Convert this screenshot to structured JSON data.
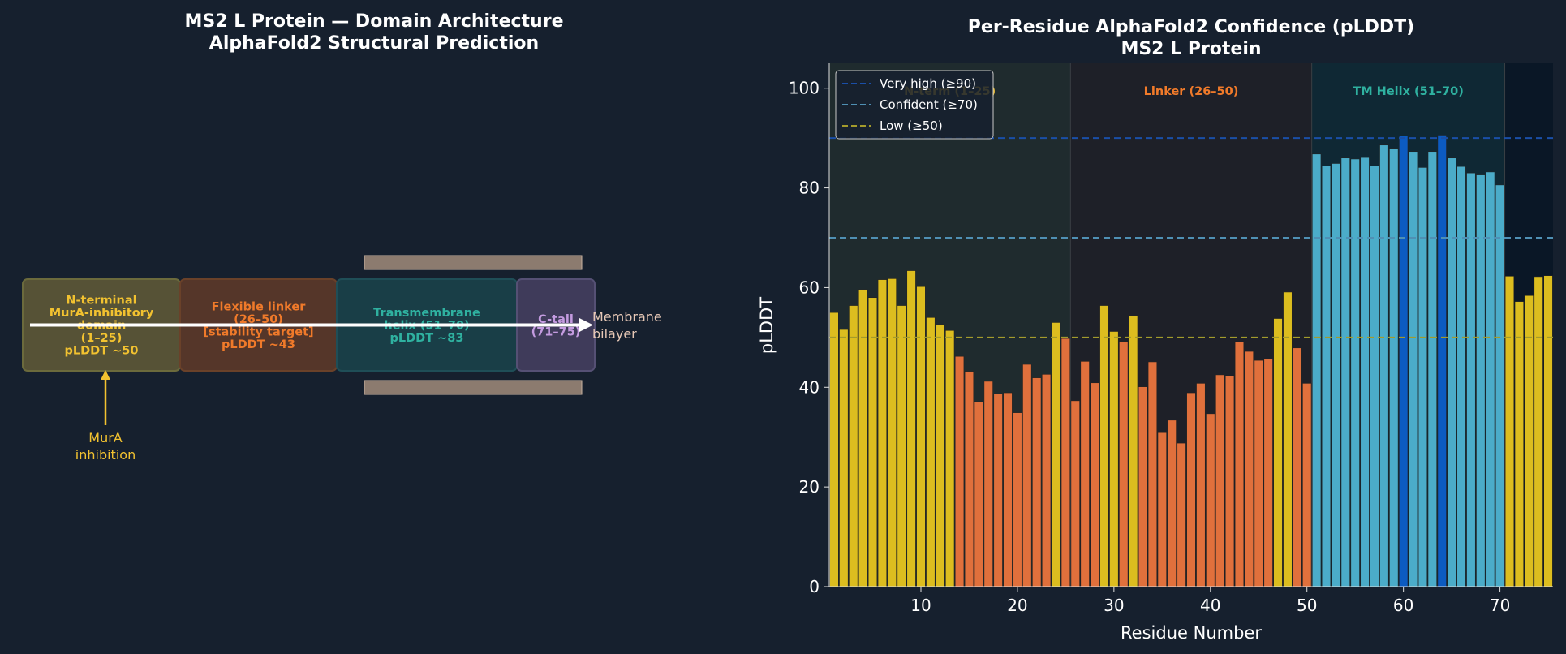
{
  "left_panel": {
    "title_line1": "MS2 L Protein — Domain Architecture",
    "title_line2": "AlphaFold2 Structural Prediction",
    "domains": [
      {
        "lines": [
          "N-terminal",
          "MurA-inhibitory",
          "domain",
          "(1–25)",
          "pLDDT ~50"
        ],
        "color": "#f2c230",
        "fill": "#565236",
        "border": "#6b6a3c"
      },
      {
        "lines": [
          "Flexible linker",
          "(26–50)",
          "[stability target]",
          "pLDDT ~43"
        ],
        "color": "#f07a2a",
        "fill": "#553629",
        "border": "#6a4129"
      },
      {
        "lines": [
          "Transmembrane",
          "helix (51–70)",
          "pLDDT ~83"
        ],
        "color": "#2fb1a0",
        "fill": "#193e47",
        "border": "#1f4e57"
      },
      {
        "lines": [
          "C-tail",
          "(71–75)"
        ],
        "color": "#c49be0",
        "fill": "#3f3b5a",
        "border": "#555074"
      }
    ],
    "membrane_label_line1": "Membrane",
    "membrane_label_line2": "bilayer",
    "mura_label_line1": "MurA",
    "mura_label_line2": "inhibition",
    "membrane_color": "#8c7b6f",
    "arrow_color": "#ffffff",
    "mura_color": "#f2c230"
  },
  "chart_data": {
    "type": "bar",
    "title": "Per-Residue AlphaFold2 Confidence (pLDDT)",
    "subtitle": "MS2 L Protein",
    "xlabel": "Residue Number",
    "ylabel": "pLDDT",
    "xlim": [
      0.5,
      75.5
    ],
    "ylim": [
      0,
      105
    ],
    "xticks": [
      10,
      20,
      30,
      40,
      50,
      60,
      70
    ],
    "yticks": [
      0,
      20,
      40,
      60,
      80,
      100
    ],
    "x": [
      1,
      2,
      3,
      4,
      5,
      6,
      7,
      8,
      9,
      10,
      11,
      12,
      13,
      14,
      15,
      16,
      17,
      18,
      19,
      20,
      21,
      22,
      23,
      24,
      25,
      26,
      27,
      28,
      29,
      30,
      31,
      32,
      33,
      34,
      35,
      36,
      37,
      38,
      39,
      40,
      41,
      42,
      43,
      44,
      45,
      46,
      47,
      48,
      49,
      50,
      51,
      52,
      53,
      54,
      55,
      56,
      57,
      58,
      59,
      60,
      61,
      62,
      63,
      64,
      65,
      66,
      67,
      68,
      69,
      70,
      71,
      72,
      73,
      74,
      75
    ],
    "values": [
      55,
      51.6,
      56.4,
      59.6,
      58,
      61.6,
      61.8,
      56.4,
      63.4,
      60.2,
      54,
      52.6,
      51.4,
      46.2,
      43.2,
      37.1,
      41.2,
      38.7,
      38.9,
      34.9,
      44.6,
      41.9,
      42.6,
      53,
      49.8,
      37.3,
      45.2,
      40.9,
      56.4,
      51.2,
      49.2,
      54.4,
      40.1,
      45.1,
      30.9,
      33.4,
      28.8,
      38.9,
      40.8,
      34.7,
      42.5,
      42.3,
      49.1,
      47.2,
      45.4,
      45.7,
      53.8,
      59.1,
      47.9,
      40.8,
      86.8,
      84.4,
      84.9,
      86,
      85.8,
      86.1,
      84.4,
      88.6,
      87.8,
      90.4,
      87.3,
      84.1,
      87.3,
      90.6,
      86,
      84.3,
      83,
      82.6,
      83.2,
      80.6,
      62.3,
      57.2,
      58.4,
      62.2,
      62.4
    ],
    "bar_colors": [
      "#dcbd1f",
      "#dcbd1f",
      "#dcbd1f",
      "#dcbd1f",
      "#dcbd1f",
      "#dcbd1f",
      "#dcbd1f",
      "#dcbd1f",
      "#dcbd1f",
      "#dcbd1f",
      "#dcbd1f",
      "#dcbd1f",
      "#dcbd1f",
      "#e0703c",
      "#e0703c",
      "#e0703c",
      "#e0703c",
      "#e0703c",
      "#e0703c",
      "#e0703c",
      "#e0703c",
      "#e0703c",
      "#e0703c",
      "#dcbd1f",
      "#e0703c",
      "#e0703c",
      "#e0703c",
      "#e0703c",
      "#dcbd1f",
      "#dcbd1f",
      "#e0703c",
      "#dcbd1f",
      "#e0703c",
      "#e0703c",
      "#e0703c",
      "#e0703c",
      "#e0703c",
      "#e0703c",
      "#e0703c",
      "#e0703c",
      "#e0703c",
      "#e0703c",
      "#e0703c",
      "#e0703c",
      "#e0703c",
      "#e0703c",
      "#dcbd1f",
      "#dcbd1f",
      "#e0703c",
      "#e0703c",
      "#4bacc9",
      "#4bacc9",
      "#4bacc9",
      "#4bacc9",
      "#4bacc9",
      "#4bacc9",
      "#4bacc9",
      "#4bacc9",
      "#4bacc9",
      "#0c5bc1",
      "#4bacc9",
      "#4bacc9",
      "#4bacc9",
      "#0c5bc1",
      "#4bacc9",
      "#4bacc9",
      "#4bacc9",
      "#4bacc9",
      "#4bacc9",
      "#4bacc9",
      "#dcbd1f",
      "#dcbd1f",
      "#dcbd1f",
      "#dcbd1f",
      "#dcbd1f"
    ],
    "regions": [
      {
        "label": "N-term (1–25)",
        "start": 0.5,
        "end": 25.5,
        "color": "#f2c230",
        "fill": "#1f2b2e"
      },
      {
        "label": "Linker (26–50)",
        "start": 25.5,
        "end": 50.5,
        "color": "#f07a2a",
        "fill": "#1e2028"
      },
      {
        "label": "TM Helix (51–70)",
        "start": 50.5,
        "end": 70.5,
        "color": "#2fb1a0",
        "fill": "#0f2834"
      },
      {
        "label": "",
        "start": 70.5,
        "end": 75.5,
        "color": "#ffffff",
        "fill": "#0a1726"
      }
    ],
    "thresholds": [
      {
        "label": "Very high (≥90)",
        "value": 90,
        "color": "#1a4fa8"
      },
      {
        "label": "Confident (≥70)",
        "value": 70,
        "color": "#4f90b4"
      },
      {
        "label": "Low (≥50)",
        "value": 50,
        "color": "#a39b2c"
      }
    ],
    "legend_position": "top-left"
  }
}
